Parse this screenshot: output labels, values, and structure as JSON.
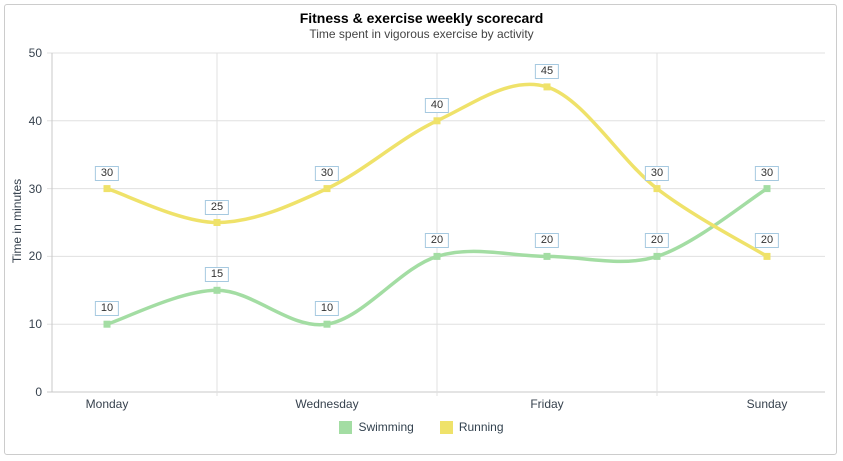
{
  "header": {
    "title": "Fitness & exercise weekly scorecard",
    "subtitle": "Time spent in vigorous exercise by activity"
  },
  "chart_data": {
    "type": "line",
    "title": "Fitness & exercise weekly scorecard",
    "subtitle": "Time spent in vigorous exercise by activity",
    "ylabel": "Time in minutes",
    "xlabel": "",
    "x_labels": [
      "Monday",
      "",
      "Wednesday",
      "",
      "Friday",
      "",
      "Sunday"
    ],
    "series": [
      {
        "name": "Swimming",
        "color": "#a3dda3",
        "values": [
          10,
          15,
          10,
          20,
          20,
          20,
          30
        ]
      },
      {
        "name": "Running",
        "color": "#efe26a",
        "values": [
          30,
          25,
          30,
          40,
          45,
          30,
          20
        ]
      }
    ],
    "y_ticks": [
      0,
      10,
      20,
      30,
      40,
      50
    ],
    "ylim": [
      0,
      50
    ],
    "grid": true,
    "curve": "smooth",
    "point_labels_shown": true,
    "legend_position": "bottom"
  },
  "style_colors": {
    "grid_line": "#e0e0e0",
    "axis_line": "#c9c9c9",
    "axis_text": "#37424e",
    "point_label_border": "#a6c9e0",
    "frame_border": "#cccccc"
  }
}
